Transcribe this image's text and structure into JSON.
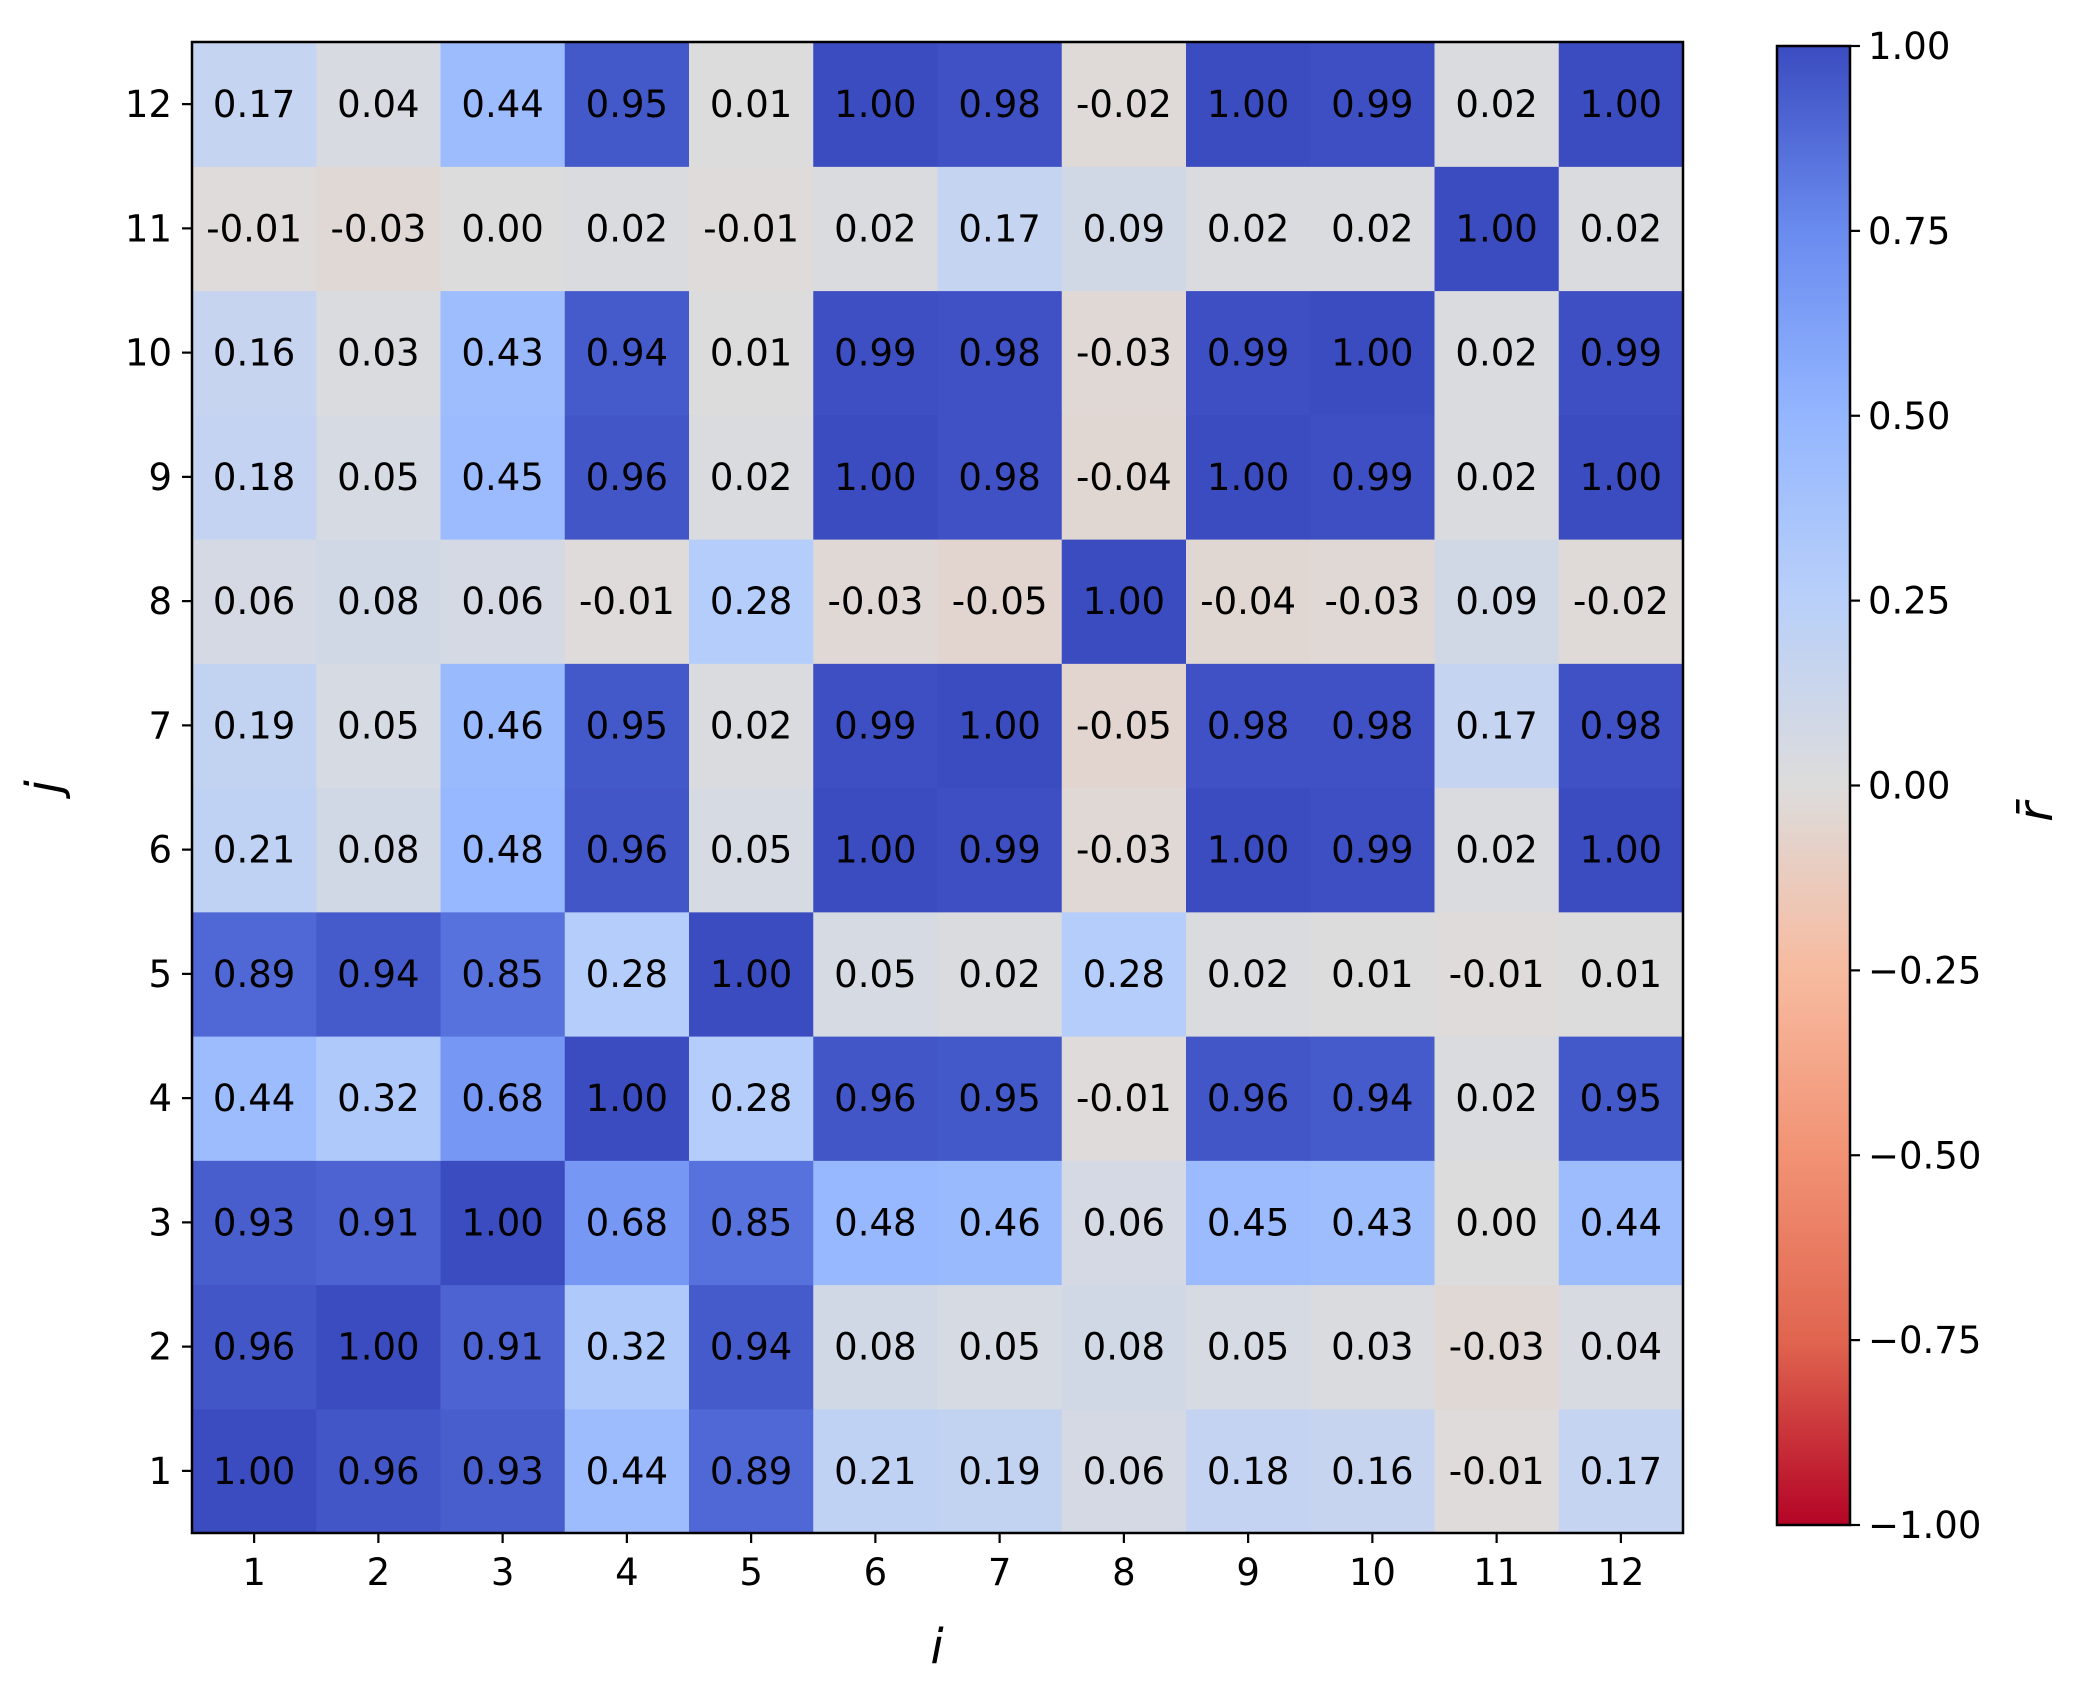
{
  "chart_data": {
    "type": "heatmap",
    "title": "",
    "xlabel": "i",
    "ylabel": "j",
    "x_categories": [
      "1",
      "2",
      "3",
      "4",
      "5",
      "6",
      "7",
      "8",
      "9",
      "10",
      "11",
      "12"
    ],
    "y_categories": [
      "1",
      "2",
      "3",
      "4",
      "5",
      "6",
      "7",
      "8",
      "9",
      "10",
      "11",
      "12"
    ],
    "values": [
      [
        1.0,
        0.96,
        0.93,
        0.44,
        0.89,
        0.21,
        0.19,
        0.06,
        0.18,
        0.16,
        -0.01,
        0.17
      ],
      [
        0.96,
        1.0,
        0.91,
        0.32,
        0.94,
        0.08,
        0.05,
        0.08,
        0.05,
        0.03,
        -0.03,
        0.04
      ],
      [
        0.93,
        0.91,
        1.0,
        0.68,
        0.85,
        0.48,
        0.46,
        0.06,
        0.45,
        0.43,
        0.0,
        0.44
      ],
      [
        0.44,
        0.32,
        0.68,
        1.0,
        0.28,
        0.96,
        0.95,
        -0.01,
        0.96,
        0.94,
        0.02,
        0.95
      ],
      [
        0.89,
        0.94,
        0.85,
        0.28,
        1.0,
        0.05,
        0.02,
        0.28,
        0.02,
        0.01,
        -0.01,
        0.01
      ],
      [
        0.21,
        0.08,
        0.48,
        0.96,
        0.05,
        1.0,
        0.99,
        -0.03,
        1.0,
        0.99,
        0.02,
        1.0
      ],
      [
        0.19,
        0.05,
        0.46,
        0.95,
        0.02,
        0.99,
        1.0,
        -0.05,
        0.98,
        0.98,
        0.17,
        0.98
      ],
      [
        0.06,
        0.08,
        0.06,
        -0.01,
        0.28,
        -0.03,
        -0.05,
        1.0,
        -0.04,
        -0.03,
        0.09,
        -0.02
      ],
      [
        0.18,
        0.05,
        0.45,
        0.96,
        0.02,
        1.0,
        0.98,
        -0.04,
        1.0,
        0.99,
        0.02,
        1.0
      ],
      [
        0.16,
        0.03,
        0.43,
        0.94,
        0.01,
        0.99,
        0.98,
        -0.03,
        0.99,
        1.0,
        0.02,
        0.99
      ],
      [
        -0.01,
        -0.03,
        0.0,
        0.02,
        -0.01,
        0.02,
        0.17,
        0.09,
        0.02,
        0.02,
        1.0,
        0.02
      ],
      [
        0.17,
        0.04,
        0.44,
        0.95,
        0.01,
        1.0,
        0.98,
        -0.02,
        1.0,
        0.99,
        0.02,
        1.0
      ]
    ],
    "colorbar": {
      "label": "r̄",
      "range": [
        -1.0,
        1.0
      ],
      "ticks": [
        "1.00",
        "0.75",
        "0.50",
        "0.25",
        "0.00",
        "−0.25",
        "−0.50",
        "−0.75",
        "−1.00"
      ],
      "colormap": "coolwarm",
      "stops": [
        {
          "v": -1.0,
          "c": "#b40426"
        },
        {
          "v": -0.75,
          "c": "#e0654f"
        },
        {
          "v": -0.5,
          "c": "#f29274"
        },
        {
          "v": -0.25,
          "c": "#f7bba0"
        },
        {
          "v": 0.0,
          "c": "#dddcdc"
        },
        {
          "v": 0.25,
          "c": "#b9d0f9"
        },
        {
          "v": 0.5,
          "c": "#94b6ff"
        },
        {
          "v": 0.75,
          "c": "#6a8bef"
        },
        {
          "v": 1.0,
          "c": "#3b4cc0"
        }
      ]
    },
    "grid": false,
    "value_format": "2 decimals"
  }
}
